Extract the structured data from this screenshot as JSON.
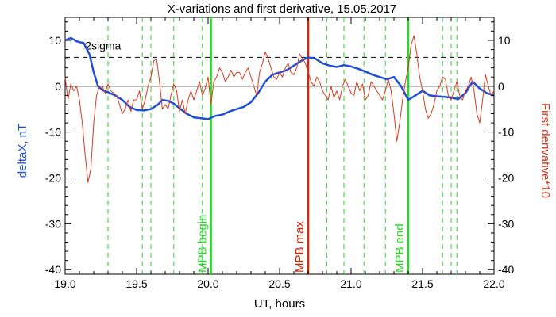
{
  "chart_data": {
    "type": "line",
    "title": "X-variations and first derivative, 15.05.2017",
    "xlabel": "UT, hours",
    "ylabel_left": "deltaX, nT",
    "ylabel_right": "First derivative*10",
    "xlim": [
      19.0,
      22.0
    ],
    "ylim": [
      -41,
      15
    ],
    "x_ticks": [
      "19.0",
      "19.5",
      "20.0",
      "20.5",
      "21.0",
      "21.5",
      "22.0"
    ],
    "x_tick_values": [
      19.0,
      19.5,
      20.0,
      20.5,
      21.0,
      21.5,
      22.0
    ],
    "y_ticks_left": [
      "10",
      "0",
      "-10",
      "-20",
      "-30",
      "-40"
    ],
    "y_ticks_right": [
      "10",
      "0",
      "-10",
      "-20",
      "-30",
      "-40"
    ],
    "y_tick_values": [
      10,
      0,
      -10,
      -20,
      -30,
      -40
    ],
    "grid": false,
    "colors": {
      "deltaX": "#1f4fd6",
      "derivative": "#d23c20",
      "sigma_line": "#000000",
      "zero_line": "#000000",
      "dashed_markers": "#33cc33",
      "mpb_begin": "#22dd22",
      "mpb_max": "#dd2200",
      "mpb_end": "#22dd22"
    },
    "sigma": {
      "label": "2sigma",
      "value": 6.3
    },
    "zero_line_value": 0,
    "dashed_green_lines_x": [
      19.3,
      19.54,
      19.6,
      19.76,
      19.96,
      20.83,
      20.95,
      21.09,
      21.24,
      21.64,
      21.7,
      21.74
    ],
    "vertical_markers": [
      {
        "label": "MPB begin",
        "x": 20.02,
        "color_key": "mpb_begin"
      },
      {
        "label": "MPB max",
        "x": 20.7,
        "color_key": "mpb_max"
      },
      {
        "label": "MPB end",
        "x": 21.4,
        "color_key": "mpb_end"
      }
    ],
    "series": [
      {
        "name": "deltaX",
        "color_key": "deltaX",
        "x": [
          19.0,
          19.04,
          19.08,
          19.1,
          19.13,
          19.17,
          19.2,
          19.23,
          19.27,
          19.3,
          19.35,
          19.4,
          19.45,
          19.5,
          19.55,
          19.6,
          19.65,
          19.68,
          19.72,
          19.76,
          19.8,
          19.85,
          19.9,
          19.95,
          20.0,
          20.05,
          20.1,
          20.15,
          20.2,
          20.25,
          20.3,
          20.35,
          20.4,
          20.45,
          20.5,
          20.55,
          20.6,
          20.65,
          20.7,
          20.75,
          20.8,
          20.85,
          20.9,
          20.95,
          21.0,
          21.05,
          21.1,
          21.15,
          21.2,
          21.25,
          21.3,
          21.35,
          21.4,
          21.45,
          21.5,
          21.55,
          21.6,
          21.65,
          21.7,
          21.75,
          21.8,
          21.85,
          21.9,
          21.95,
          22.0
        ],
        "y": [
          10.0,
          10.5,
          9.8,
          9.6,
          9.4,
          7.0,
          3.0,
          0.0,
          -1.0,
          -1.3,
          -2.0,
          -3.0,
          -4.5,
          -5.2,
          -5.3,
          -5.0,
          -4.0,
          -3.0,
          -3.2,
          -3.8,
          -4.8,
          -6.0,
          -6.8,
          -7.0,
          -7.2,
          -6.5,
          -6.2,
          -5.5,
          -5.0,
          -4.5,
          -3.5,
          -1.5,
          1.0,
          2.5,
          3.0,
          3.5,
          4.5,
          5.5,
          6.3,
          6.0,
          5.0,
          4.5,
          4.2,
          4.6,
          4.3,
          3.8,
          3.2,
          2.5,
          2.0,
          1.5,
          2.0,
          0.0,
          -3.0,
          -2.0,
          -1.0,
          -2.0,
          -2.2,
          -2.3,
          -2.5,
          -2.8,
          -1.5,
          1.0,
          -0.5,
          -1.5,
          -2.0
        ]
      },
      {
        "name": "First derivative*10",
        "color_key": "derivative",
        "x": [
          19.0,
          19.02,
          19.04,
          19.06,
          19.08,
          19.1,
          19.12,
          19.14,
          19.16,
          19.18,
          19.2,
          19.22,
          19.24,
          19.26,
          19.28,
          19.3,
          19.32,
          19.34,
          19.36,
          19.38,
          19.4,
          19.42,
          19.44,
          19.46,
          19.48,
          19.5,
          19.52,
          19.54,
          19.56,
          19.58,
          19.6,
          19.62,
          19.64,
          19.66,
          19.68,
          19.7,
          19.72,
          19.74,
          19.76,
          19.78,
          19.8,
          19.82,
          19.84,
          19.86,
          19.88,
          19.9,
          19.92,
          19.94,
          19.96,
          19.98,
          20.0,
          20.02,
          20.04,
          20.06,
          20.08,
          20.1,
          20.12,
          20.14,
          20.16,
          20.18,
          20.2,
          20.22,
          20.24,
          20.26,
          20.28,
          20.3,
          20.32,
          20.34,
          20.36,
          20.38,
          20.4,
          20.42,
          20.44,
          20.46,
          20.48,
          20.5,
          20.52,
          20.54,
          20.56,
          20.58,
          20.6,
          20.62,
          20.64,
          20.66,
          20.68,
          20.7,
          20.72,
          20.74,
          20.76,
          20.78,
          20.8,
          20.82,
          20.84,
          20.86,
          20.88,
          20.9,
          20.92,
          20.94,
          20.96,
          20.98,
          21.0,
          21.02,
          21.04,
          21.06,
          21.08,
          21.1,
          21.12,
          21.14,
          21.16,
          21.18,
          21.2,
          21.22,
          21.24,
          21.26,
          21.28,
          21.3,
          21.32,
          21.34,
          21.36,
          21.38,
          21.4,
          21.42,
          21.44,
          21.46,
          21.48,
          21.5,
          21.52,
          21.54,
          21.56,
          21.58,
          21.6,
          21.62,
          21.64,
          21.66,
          21.68,
          21.7,
          21.72,
          21.74,
          21.76,
          21.78,
          21.8,
          21.82,
          21.84,
          21.86,
          21.88,
          21.9,
          21.92,
          21.94,
          21.96,
          21.98,
          22.0
        ],
        "y": [
          2.0,
          -3.0,
          0.5,
          -1.0,
          0.0,
          -3.0,
          -8.0,
          -15.0,
          -21.0,
          -18.0,
          -8.0,
          -2.0,
          0.0,
          0.0,
          -1.5,
          0.5,
          -1.0,
          -1.5,
          -2.0,
          -4.0,
          -6.0,
          -5.0,
          -3.0,
          -5.5,
          -3.0,
          -3.0,
          -1.0,
          -5.0,
          -3.0,
          0.0,
          2.0,
          5.5,
          6.0,
          1.0,
          -5.0,
          -4.0,
          -5.0,
          -2.0,
          0.5,
          -1.0,
          -5.5,
          -3.0,
          -6.0,
          -3.0,
          -1.0,
          -3.0,
          -1.0,
          1.0,
          -2.0,
          -0.5,
          2.0,
          -4.0,
          1.0,
          2.0,
          4.0,
          3.0,
          1.0,
          2.0,
          3.5,
          2.0,
          3.0,
          3.0,
          1.5,
          3.0,
          4.0,
          2.0,
          0.0,
          -2.0,
          3.0,
          5.0,
          7.5,
          6.0,
          4.0,
          2.0,
          1.5,
          3.0,
          2.0,
          4.0,
          5.0,
          3.0,
          2.5,
          4.0,
          7.0,
          6.0,
          5.0,
          3.0,
          1.0,
          0.0,
          2.0,
          1.0,
          -1.0,
          -2.0,
          -3.0,
          0.0,
          -2.5,
          -1.0,
          -3.0,
          0.0,
          1.5,
          0.0,
          -1.5,
          -2.0,
          1.0,
          -1.0,
          0.5,
          -3.0,
          -2.0,
          1.0,
          0.0,
          -1.0,
          -2.0,
          -3.0,
          -1.0,
          1.5,
          -1.0,
          -6.0,
          -12.0,
          -8.0,
          -3.0,
          1.0,
          4.0,
          9.0,
          11.0,
          7.0,
          2.0,
          -1.0,
          -5.0,
          -7.0,
          -6.0,
          -4.0,
          -1.0,
          0.0,
          2.0,
          1.5,
          -2.0,
          -3.0,
          -1.0,
          1.0,
          -2.0,
          -3.0,
          -1.0,
          0.0,
          2.0,
          -1.0,
          -6.0,
          -8.0,
          -3.0,
          2.5,
          0.0,
          -2.0,
          -1.0
        ]
      }
    ]
  }
}
